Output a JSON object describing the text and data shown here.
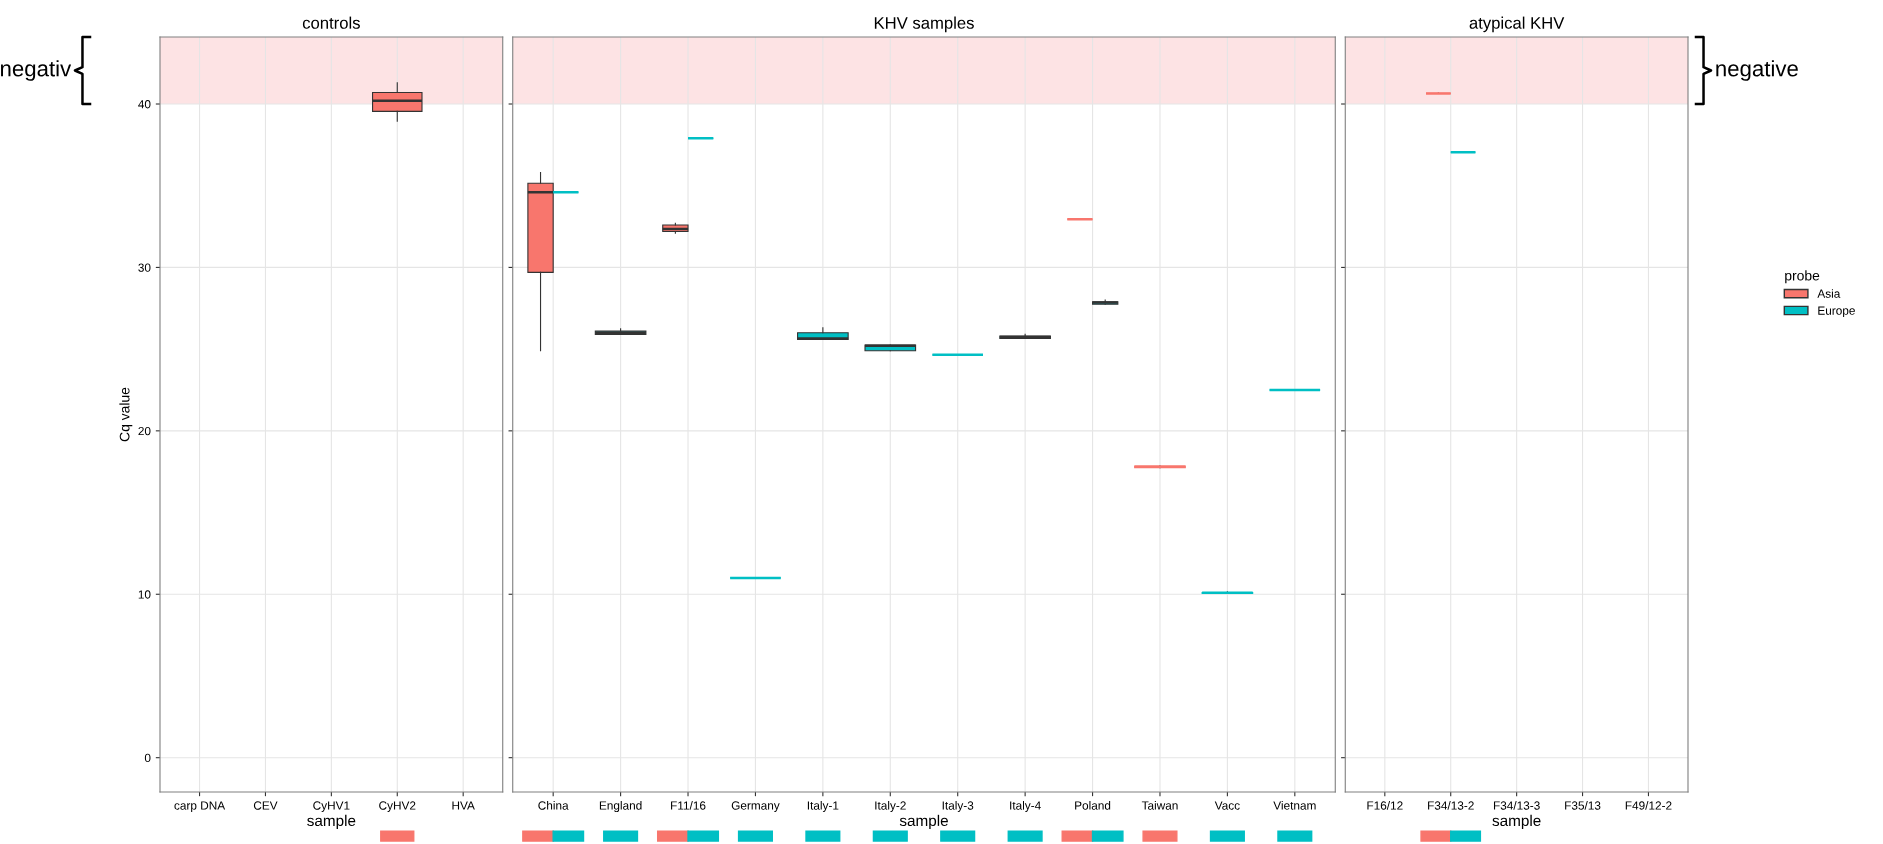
{
  "chart_data": [
    {
      "type": "box",
      "title": "controls",
      "xlabel": "sample",
      "ylabel": "Cq value",
      "categories": [
        "carp DNA",
        "CEV",
        "CyHV1",
        "CyHV2",
        "HVA"
      ],
      "ylim": [
        -2.1,
        44.1
      ],
      "yticks": [
        0,
        10,
        20,
        30,
        40
      ],
      "grid": true,
      "bands": [
        {
          "axis": "y",
          "from": 40,
          "to": 44.1,
          "color": "#fde3e4"
        }
      ],
      "annotations": [
        "negativ"
      ],
      "series": [
        {
          "color": "#f8766d",
          "boxes": [
            null,
            null,
            null,
            {
              "low": 38.95,
              "q1": 39.55,
              "median": 40.2,
              "q3": 40.7,
              "high": 41.3
            },
            null
          ]
        }
      ]
    },
    {
      "type": "box",
      "title": "KHV samples",
      "xlabel": "sample",
      "categories": [
        "China",
        "England",
        "F11/16",
        "Germany",
        "Italy-1",
        "Italy-2",
        "Italy-3",
        "Italy-4",
        "Poland",
        "Taiwan",
        "Vacc",
        "Vietnam"
      ],
      "ylim": [
        -2.1,
        44.1
      ],
      "yticks": [
        0,
        10,
        20,
        30,
        40
      ],
      "tick_labels": "x",
      "grid": true,
      "bands": [
        {
          "axis": "y",
          "from": 40,
          "to": 44.1,
          "color": "#fde3e4"
        }
      ],
      "series": [
        {
          "color": "#f8766d",
          "boxes": [
            {
              "low": 24.9,
              "q1": 29.7,
              "median": 34.6,
              "q3": 35.15,
              "high": 35.8
            },
            null,
            {
              "low": 32.1,
              "q1": 32.2,
              "median": 32.35,
              "q3": 32.6,
              "high": 32.7
            },
            null,
            null,
            null,
            null,
            null,
            {
              "low": 32.95,
              "q1": 32.95,
              "median": 32.95,
              "q3": 32.95,
              "high": 32.95
            },
            {
              "low": 17.75,
              "q1": 17.75,
              "median": 17.8,
              "q3": 17.85,
              "high": 17.85
            },
            null,
            null
          ]
        },
        {
          "color": "#00bfc4",
          "boxes": [
            {
              "low": 34.6,
              "q1": 34.6,
              "median": 34.6,
              "q3": 34.6,
              "high": 34.6
            },
            {
              "low": 25.9,
              "q1": 25.9,
              "median": 26.0,
              "q3": 26.1,
              "high": 26.25
            },
            {
              "low": 37.9,
              "q1": 37.9,
              "median": 37.9,
              "q3": 37.9,
              "high": 37.9
            },
            {
              "low": 11.0,
              "q1": 11.0,
              "median": 11.0,
              "q3": 11.0,
              "high": 11.0
            },
            {
              "low": 25.6,
              "q1": 25.6,
              "median": 25.65,
              "q3": 26.0,
              "high": 26.3
            },
            {
              "low": 24.9,
              "q1": 24.9,
              "median": 25.2,
              "q3": 25.25,
              "high": 25.25
            },
            {
              "low": 24.65,
              "q1": 24.65,
              "median": 24.65,
              "q3": 24.65,
              "high": 24.65
            },
            {
              "low": 25.65,
              "q1": 25.65,
              "median": 25.75,
              "q3": 25.8,
              "high": 25.9
            },
            {
              "low": 27.75,
              "q1": 27.75,
              "median": 27.85,
              "q3": 27.9,
              "high": 28.0
            },
            null,
            {
              "low": 10.05,
              "q1": 10.05,
              "median": 10.1,
              "q3": 10.1,
              "high": 10.15
            },
            {
              "low": 22.5,
              "q1": 22.5,
              "median": 22.5,
              "q3": 22.5,
              "high": 22.5
            }
          ]
        }
      ]
    },
    {
      "type": "box",
      "title": "atypical KHV",
      "xlabel": "sample",
      "categories": [
        "F16/12",
        "F34/13-2",
        "F34/13-3",
        "F35/13",
        "F49/12-2"
      ],
      "ylim": [
        -2.1,
        44.1
      ],
      "yticks": [
        0,
        10,
        20,
        30,
        40
      ],
      "tick_labels": "x",
      "grid": true,
      "bands": [
        {
          "axis": "y",
          "from": 40,
          "to": 44.1,
          "color": "#fde3e4"
        }
      ],
      "annotations": [
        "negative"
      ],
      "legend": "right",
      "legend_title": "probe",
      "series": [
        {
          "name": "Asia",
          "color": "#f8766d",
          "boxes": [
            null,
            {
              "low": 40.65,
              "q1": 40.65,
              "median": 40.65,
              "q3": 40.65,
              "high": 40.65
            },
            null,
            null,
            null
          ]
        },
        {
          "name": "Europe",
          "color": "#00bfc4",
          "boxes": [
            null,
            {
              "low": 37.05,
              "q1": 37.05,
              "median": 37.05,
              "q3": 37.05,
              "high": 37.05
            },
            null,
            null,
            null
          ]
        }
      ]
    }
  ]
}
